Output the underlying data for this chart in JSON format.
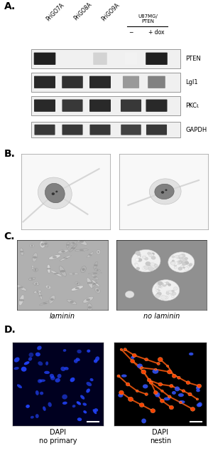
{
  "panel_labels": [
    "A.",
    "B.",
    "C.",
    "D."
  ],
  "panel_label_fontsize": 10,
  "panel_label_fontweight": "bold",
  "col_labels": [
    "PriGO7A",
    "PriGO8A",
    "PriGO9A",
    "−",
    "+ dox"
  ],
  "u87_label": "U87MG/\nPTEN",
  "row_labels": [
    "PTEN",
    "Lgl1",
    "PKCι",
    "GAPDH"
  ],
  "pten_bands": [
    0.92,
    0.0,
    0.18,
    0.05,
    0.92
  ],
  "lgl1_bands": [
    0.88,
    0.85,
    0.88,
    0.42,
    0.52
  ],
  "pkci_bands": [
    0.88,
    0.82,
    0.88,
    0.82,
    0.88
  ],
  "gapdh_bands": [
    0.82,
    0.82,
    0.82,
    0.78,
    0.82
  ],
  "fluor_left_bg": "#000020",
  "fluor_right_bg": "#000000",
  "dapi_color": "#2244ff",
  "nestin_color_line": "#cc4400",
  "nestin_color_bright": "#ff6622",
  "nestin_dot_color": "#ff4400",
  "label_laminin": "laminin",
  "label_no_laminin": "no laminin",
  "label_dapi_no_primary": "DAPI\nno primary",
  "label_dapi_nestin": "DAPI\nnestin",
  "fig_bg": "#ffffff",
  "text_color": "#000000",
  "fontsize_small": 5.5,
  "fontsize_italic": 7
}
